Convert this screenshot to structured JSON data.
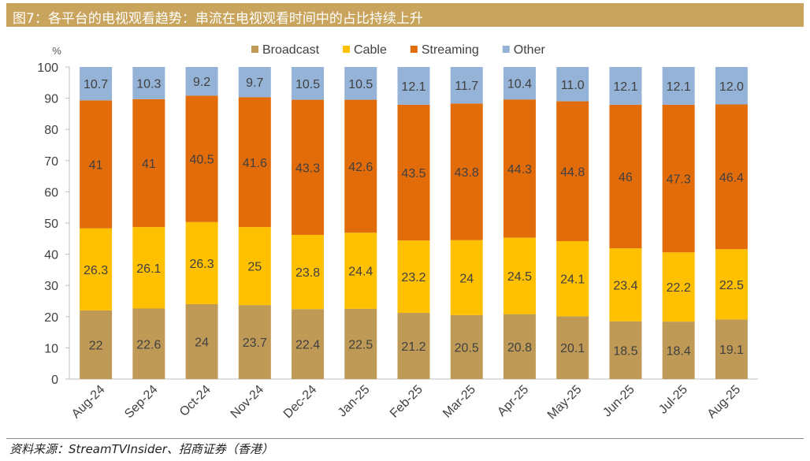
{
  "title": "图7：各平台的电视观看趋势：串流在电视观看时间中的占比持续上升",
  "source": "资料来源：StreamTVInsider、招商证券（香港）",
  "colors": {
    "title_bg": "#c9a45c",
    "Broadcast": "#bf9a57",
    "Cable": "#ffc000",
    "Streaming": "#e36c0a",
    "Other": "#95b3d7"
  },
  "chart_data": {
    "type": "bar",
    "stacked": true,
    "unit_label": "%",
    "ylim": [
      0,
      100
    ],
    "yticks": [
      0,
      10,
      20,
      30,
      40,
      50,
      60,
      70,
      80,
      90,
      100
    ],
    "legend_position": "top",
    "categories": [
      "Aug-24",
      "Sep-24",
      "Oct-24",
      "Nov-24",
      "Dec-24",
      "Jan-25",
      "Feb-25",
      "Mar-25",
      "Apr-25",
      "May-25",
      "Jun-25",
      "Jul-25",
      "Aug-25"
    ],
    "series": [
      {
        "name": "Broadcast",
        "values": [
          22,
          22.6,
          24,
          23.7,
          22.4,
          22.5,
          21.2,
          20.5,
          20.8,
          20.1,
          18.5,
          18.4,
          19.1
        ],
        "labels": [
          "22",
          "22.6",
          "24",
          "23.7",
          "22.4",
          "22.5",
          "21.2",
          "20.5",
          "20.8",
          "20.1",
          "18.5",
          "18.4",
          "19.1"
        ]
      },
      {
        "name": "Cable",
        "values": [
          26.3,
          26.1,
          26.3,
          25,
          23.8,
          24.4,
          23.2,
          24,
          24.5,
          24.1,
          23.4,
          22.2,
          22.5
        ],
        "labels": [
          "26.3",
          "26.1",
          "26.3",
          "25",
          "23.8",
          "24.4",
          "23.2",
          "24",
          "24.5",
          "24.1",
          "23.4",
          "22.2",
          "22.5"
        ]
      },
      {
        "name": "Streaming",
        "values": [
          41,
          41,
          40.5,
          41.6,
          43.3,
          42.6,
          43.5,
          43.8,
          44.3,
          44.8,
          46,
          47.3,
          46.4
        ],
        "labels": [
          "41",
          "41",
          "40.5",
          "41.6",
          "43.3",
          "42.6",
          "43.5",
          "43.8",
          "44.3",
          "44.8",
          "46",
          "47.3",
          "46.4"
        ]
      },
      {
        "name": "Other",
        "values": [
          10.7,
          10.3,
          9.2,
          9.7,
          10.5,
          10.5,
          12.1,
          11.7,
          10.4,
          11.0,
          12.1,
          12.1,
          12.0
        ],
        "labels": [
          "10.7",
          "10.3",
          "9.2",
          "9.7",
          "10.5",
          "10.5",
          "12.1",
          "11.7",
          "10.4",
          "11.0",
          "12.1",
          "12.1",
          "12.0"
        ]
      }
    ]
  }
}
